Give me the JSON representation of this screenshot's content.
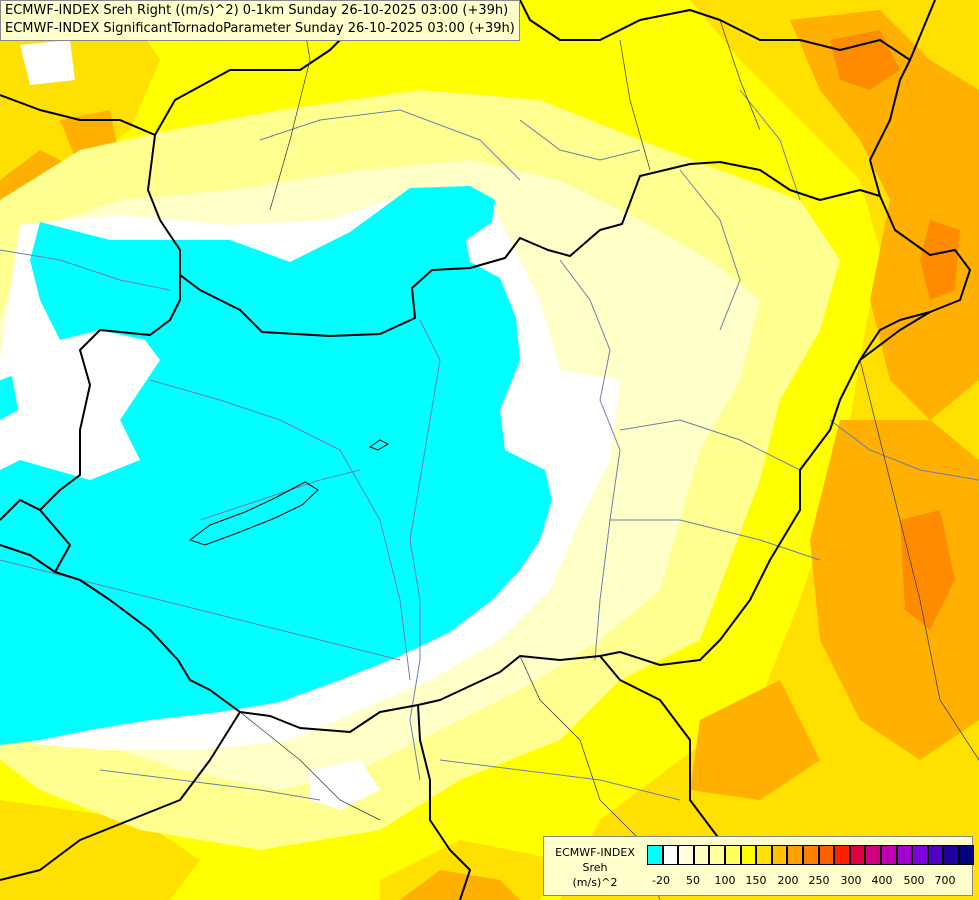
{
  "title": {
    "line1": "ECMWF-INDEX Sreh Right ((m/s)^2) 0-1km Sunday 26-10-2025 03:00 (+39h)",
    "line2": "ECMWF-INDEX SignificantTornadoParameter Sunday 26-10-2025 03:00 (+39h)"
  },
  "legend": {
    "line1": "ECMWF-INDEX",
    "line2": "Sreh",
    "line3": "(m/s)^2",
    "colors": [
      "#00ffff",
      "#ffffff",
      "#ffffe0",
      "#ffffc0",
      "#ffffa0",
      "#ffff60",
      "#ffff00",
      "#ffe000",
      "#ffc000",
      "#ffa000",
      "#ff8000",
      "#ff6000",
      "#ff2000",
      "#e00040",
      "#d00080",
      "#c000b0",
      "#a000d0",
      "#8000e0",
      "#5000c0",
      "#2000a0",
      "#000080"
    ],
    "ticks": [
      "-20",
      "50",
      "100",
      "150",
      "200",
      "250",
      "300",
      "400",
      "500",
      "700"
    ]
  },
  "map": {
    "colors": {
      "cyan": "#00ffff",
      "white": "#ffffff",
      "pale": "#ffffc8",
      "light_yellow": "#ffff90",
      "yellow": "#ffff00",
      "gold": "#ffe000",
      "orange": "#ffb000",
      "dark_orange": "#ff8c00",
      "border": "#000000",
      "river": "#6a7fb0"
    }
  }
}
